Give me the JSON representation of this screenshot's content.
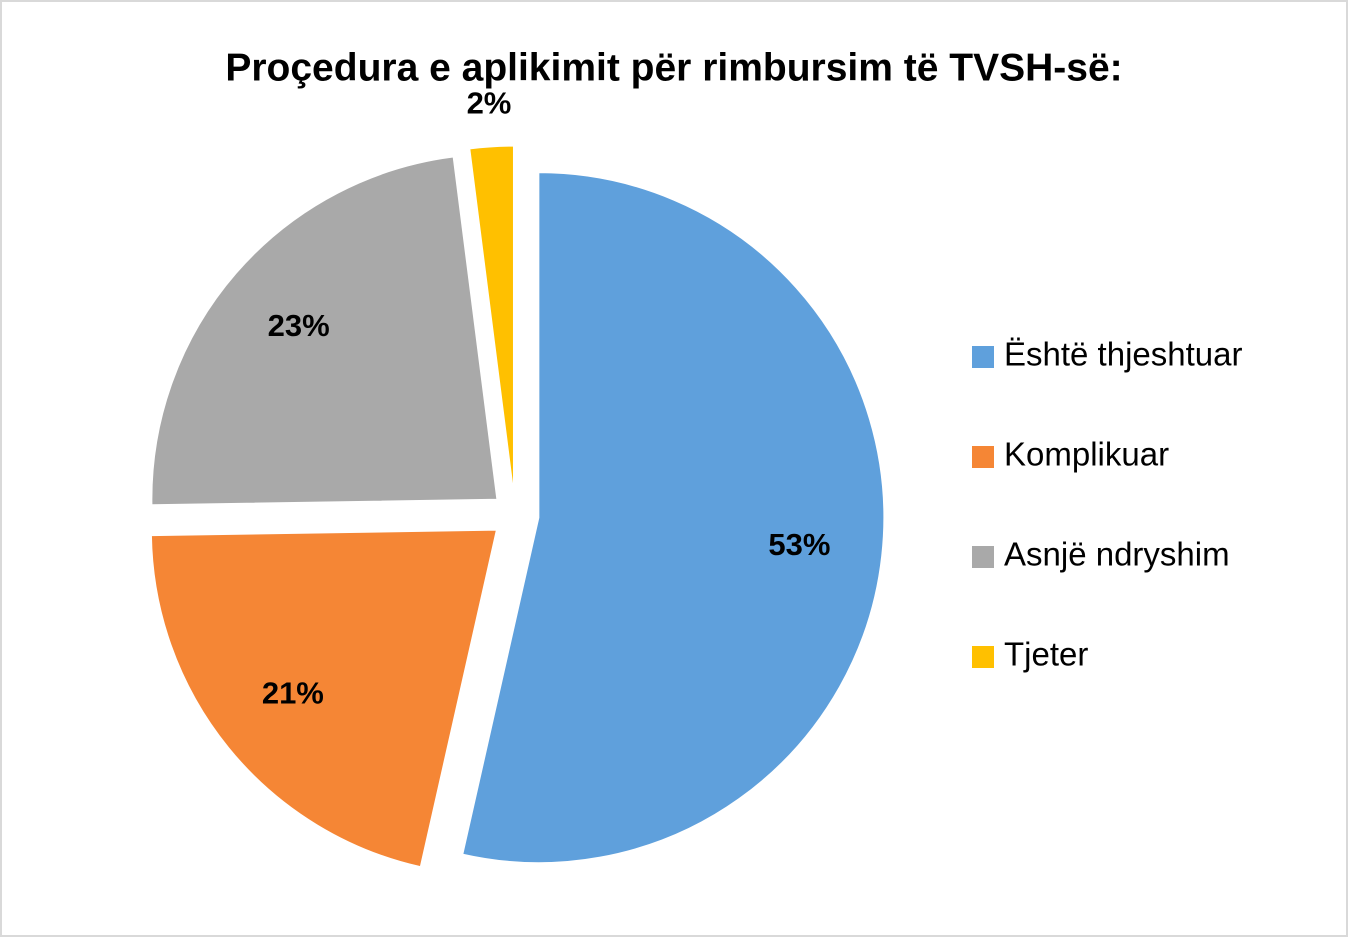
{
  "chart_data": {
    "type": "pie",
    "title": "Proçedura e aplikimit për rimbursim të TVSH-së:",
    "categories": [
      "Është thjeshtuar",
      "Komplikuar",
      "Asnjë ndryshim",
      "Tjeter"
    ],
    "values": [
      53,
      21,
      23,
      2
    ],
    "value_labels": [
      "53%",
      "21%",
      "23%",
      "2%"
    ],
    "colors": [
      "#5fa0dc",
      "#f58635",
      "#a9a9a9",
      "#ffc000"
    ],
    "legend": "right"
  }
}
